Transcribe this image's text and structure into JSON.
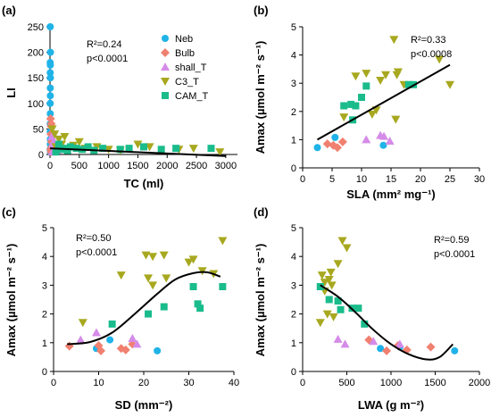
{
  "chart_data": [
    {
      "panel": "(a)",
      "type": "scatter",
      "xlabel": "TC (ml)",
      "ylabel": "LI",
      "xlim": [
        0,
        3200
      ],
      "ylim": [
        0,
        250
      ],
      "xticks": [
        0,
        500,
        1000,
        1500,
        2000,
        2500,
        3000
      ],
      "yticks": [
        0,
        50,
        100,
        150,
        200,
        250
      ],
      "annotation_stat": "R²=0.24",
      "annotation_p": "p<0.0001",
      "legend_position": "top-right",
      "series": [
        {
          "name": "Neb",
          "color": "#1fb3e8",
          "marker": "circle",
          "points": [
            [
              5,
              250
            ],
            [
              8,
              200
            ],
            [
              3,
              180
            ],
            [
              6,
              175
            ],
            [
              4,
              160
            ],
            [
              7,
              150
            ],
            [
              5,
              130
            ],
            [
              6,
              115
            ],
            [
              4,
              100
            ],
            [
              5,
              80
            ],
            [
              3,
              60
            ],
            [
              4,
              45
            ],
            [
              6,
              30
            ],
            [
              5,
              20
            ],
            [
              3,
              10
            ],
            [
              8,
              5
            ]
          ]
        },
        {
          "name": "Bulb",
          "color": "#f08070",
          "marker": "diamond",
          "points": [
            [
              10,
              70
            ],
            [
              20,
              55
            ],
            [
              15,
              40
            ],
            [
              25,
              25
            ],
            [
              30,
              15
            ],
            [
              12,
              10
            ],
            [
              22,
              60
            ],
            [
              18,
              5
            ]
          ]
        },
        {
          "name": "shall_T",
          "color": "#d58be8",
          "marker": "triangle-up",
          "points": [
            [
              30,
              35
            ],
            [
              50,
              20
            ],
            [
              70,
              10
            ],
            [
              40,
              5
            ],
            [
              90,
              15
            ],
            [
              120,
              8
            ],
            [
              60,
              25
            ]
          ]
        },
        {
          "name": "C3_T",
          "color": "#a8a820",
          "marker": "triangle-down",
          "points": [
            [
              40,
              50
            ],
            [
              80,
              40
            ],
            [
              150,
              30
            ],
            [
              200,
              20
            ],
            [
              100,
              15
            ],
            [
              300,
              10
            ],
            [
              400,
              18
            ],
            [
              600,
              12
            ],
            [
              800,
              15
            ],
            [
              1000,
              10
            ],
            [
              1200,
              8
            ],
            [
              1500,
              20
            ],
            [
              1700,
              15
            ],
            [
              2200,
              10
            ],
            [
              2450,
              12
            ],
            [
              2900,
              5
            ],
            [
              500,
              25
            ],
            [
              250,
              35
            ]
          ]
        },
        {
          "name": "CAM_T",
          "color": "#1abc8c",
          "marker": "square",
          "points": [
            [
              100,
              5
            ],
            [
              200,
              10
            ],
            [
              300,
              8
            ],
            [
              350,
              15
            ],
            [
              450,
              12
            ],
            [
              550,
              10
            ],
            [
              650,
              15
            ],
            [
              750,
              8
            ],
            [
              900,
              12
            ],
            [
              1200,
              10
            ],
            [
              1350,
              12
            ],
            [
              1600,
              15
            ],
            [
              1900,
              10
            ],
            [
              2150,
              12
            ],
            [
              2750,
              12
            ],
            [
              150,
              20
            ],
            [
              250,
              12
            ]
          ]
        }
      ],
      "fit": {
        "type": "line",
        "points": [
          [
            0,
            12
          ],
          [
            3000,
            -3
          ]
        ]
      }
    },
    {
      "panel": "(b)",
      "type": "scatter",
      "xlabel": "SLA (mm² mg⁻¹)",
      "ylabel": "Amax (µmol m⁻² s⁻¹)",
      "xlim": [
        0,
        30
      ],
      "ylim": [
        0,
        5
      ],
      "xticks": [
        0,
        5,
        10,
        15,
        20,
        25,
        30
      ],
      "yticks": [
        0,
        1,
        2,
        3,
        4,
        5
      ],
      "annotation_stat": "R²=0.33",
      "annotation_p": "p<0.0008",
      "series": [
        {
          "name": "Neb",
          "color": "#1fb3e8",
          "marker": "circle",
          "points": [
            [
              2.5,
              0.72
            ],
            [
              5.5,
              1.08
            ],
            [
              13.7,
              0.8
            ]
          ]
        },
        {
          "name": "Bulb",
          "color": "#f08070",
          "marker": "diamond",
          "points": [
            [
              4.2,
              0.85
            ],
            [
              5.2,
              0.8
            ],
            [
              5.9,
              0.72
            ],
            [
              6.8,
              0.92
            ]
          ]
        },
        {
          "name": "shall_T",
          "color": "#d58be8",
          "marker": "triangle-up",
          "points": [
            [
              10.8,
              1.0
            ],
            [
              13.2,
              1.15
            ],
            [
              13.8,
              1.12
            ],
            [
              14.8,
              0.95
            ]
          ]
        },
        {
          "name": "C3_T",
          "color": "#a8a820",
          "marker": "triangle-down",
          "points": [
            [
              7.0,
              1.8
            ],
            [
              9.0,
              3.25
            ],
            [
              10.8,
              3.35
            ],
            [
              11.8,
              1.9
            ],
            [
              13.2,
              3.1
            ],
            [
              14.1,
              3.3
            ],
            [
              15.5,
              4.55
            ],
            [
              16.2,
              3.4
            ],
            [
              15.8,
              1.72
            ],
            [
              17.2,
              2.95
            ],
            [
              23.2,
              3.85
            ],
            [
              25.0,
              2.95
            ],
            [
              16.0,
              3.3
            ],
            [
              12.5,
              2.05
            ]
          ]
        },
        {
          "name": "CAM_T",
          "color": "#1abc8c",
          "marker": "square",
          "points": [
            [
              8.5,
              1.7
            ],
            [
              7.0,
              2.2
            ],
            [
              8.2,
              2.25
            ],
            [
              9.0,
              2.2
            ],
            [
              10.0,
              2.5
            ],
            [
              10.8,
              2.9
            ],
            [
              18.0,
              2.95
            ],
            [
              18.8,
              2.95
            ]
          ]
        }
      ],
      "fit": {
        "type": "line",
        "points": [
          [
            2.5,
            1.0
          ],
          [
            25,
            3.65
          ]
        ]
      }
    },
    {
      "panel": "(c)",
      "type": "scatter",
      "xlabel": "SD (mm⁻²)",
      "ylabel": "Amax (µmol m⁻² s⁻¹)",
      "xlim": [
        0,
        40
      ],
      "ylim": [
        0,
        5
      ],
      "xticks": [
        0,
        10,
        20,
        30,
        40
      ],
      "yticks": [
        0,
        1,
        2,
        3,
        4,
        5
      ],
      "annotation_stat": "R²=0.50",
      "annotation_p": "p<0.0001",
      "series": [
        {
          "name": "Neb",
          "color": "#1fb3e8",
          "marker": "circle",
          "points": [
            [
              9.5,
              0.8
            ],
            [
              12.5,
              1.1
            ],
            [
              23.0,
              0.72
            ]
          ]
        },
        {
          "name": "Bulb",
          "color": "#f08070",
          "marker": "diamond",
          "points": [
            [
              3.5,
              0.88
            ],
            [
              10.5,
              0.72
            ],
            [
              15.0,
              0.8
            ],
            [
              16.0,
              0.75
            ],
            [
              17.5,
              0.95
            ],
            [
              10.0,
              0.9
            ]
          ]
        },
        {
          "name": "shall_T",
          "color": "#d58be8",
          "marker": "triangle-up",
          "points": [
            [
              6.0,
              1.1
            ],
            [
              9.5,
              1.35
            ],
            [
              17.5,
              1.15
            ],
            [
              18.5,
              0.95
            ]
          ]
        },
        {
          "name": "C3_T",
          "color": "#a8a820",
          "marker": "triangle-down",
          "points": [
            [
              6.5,
              1.7
            ],
            [
              15.0,
              3.35
            ],
            [
              20.5,
              4.05
            ],
            [
              21.0,
              3.25
            ],
            [
              22.0,
              3.0
            ],
            [
              22.0,
              4.0
            ],
            [
              24.5,
              4.05
            ],
            [
              30.0,
              3.8
            ],
            [
              31.0,
              3.9
            ],
            [
              33.0,
              3.5
            ],
            [
              35.5,
              3.4
            ],
            [
              37.5,
              4.55
            ],
            [
              25.0,
              3.25
            ]
          ]
        },
        {
          "name": "CAM_T",
          "color": "#1abc8c",
          "marker": "square",
          "points": [
            [
              13.0,
              1.65
            ],
            [
              21.0,
              2.0
            ],
            [
              24.5,
              2.25
            ],
            [
              31.0,
              2.95
            ],
            [
              32.0,
              2.35
            ],
            [
              32.5,
              2.2
            ],
            [
              37.5,
              2.95
            ]
          ]
        }
      ],
      "fit": {
        "type": "curve",
        "points": [
          [
            3,
            0.95
          ],
          [
            8,
            1.02
          ],
          [
            13,
            1.35
          ],
          [
            18,
            2.0
          ],
          [
            23,
            2.7
          ],
          [
            27,
            3.2
          ],
          [
            31,
            3.42
          ],
          [
            34,
            3.45
          ],
          [
            37,
            3.3
          ]
        ]
      }
    },
    {
      "panel": "(d)",
      "type": "scatter",
      "xlabel": "LWA (g m⁻²)",
      "ylabel": "Amax (µmol m⁻² s⁻¹)",
      "xlim": [
        0,
        2000
      ],
      "ylim": [
        0,
        5
      ],
      "xticks": [
        0,
        500,
        1000,
        1500,
        2000
      ],
      "yticks": [
        0,
        1,
        2,
        3,
        4,
        5
      ],
      "annotation_stat": "R²=0.59",
      "annotation_p": "p<0.0001",
      "series": [
        {
          "name": "Neb",
          "color": "#1fb3e8",
          "marker": "circle",
          "points": [
            [
              880,
              0.8
            ],
            [
              1100,
              0.85
            ],
            [
              1720,
              0.72
            ]
          ]
        },
        {
          "name": "Bulb",
          "color": "#f08070",
          "marker": "diamond",
          "points": [
            [
              750,
              1.1
            ],
            [
              950,
              0.72
            ],
            [
              1080,
              0.9
            ],
            [
              1180,
              0.75
            ],
            [
              1450,
              0.85
            ]
          ]
        },
        {
          "name": "shall_T",
          "color": "#d58be8",
          "marker": "triangle-up",
          "points": [
            [
              400,
              1.12
            ],
            [
              480,
              0.95
            ],
            [
              800,
              1.05
            ],
            [
              1100,
              0.95
            ]
          ]
        },
        {
          "name": "C3_T",
          "color": "#a8a820",
          "marker": "triangle-down",
          "points": [
            [
              200,
              1.7
            ],
            [
              220,
              3.35
            ],
            [
              250,
              3.1
            ],
            [
              280,
              2.0
            ],
            [
              300,
              3.2
            ],
            [
              320,
              3.45
            ],
            [
              400,
              3.75
            ],
            [
              450,
              4.55
            ],
            [
              500,
              4.3
            ],
            [
              250,
              2.8
            ],
            [
              350,
              1.9
            ],
            [
              330,
              3.0
            ]
          ]
        },
        {
          "name": "CAM_T",
          "color": "#1abc8c",
          "marker": "square",
          "points": [
            [
              200,
              2.95
            ],
            [
              400,
              2.45
            ],
            [
              430,
              2.15
            ],
            [
              560,
              2.2
            ],
            [
              630,
              2.2
            ],
            [
              700,
              1.65
            ],
            [
              300,
              2.5
            ]
          ]
        }
      ],
      "fit": {
        "type": "curve",
        "points": [
          [
            200,
            3.0
          ],
          [
            400,
            2.6
          ],
          [
            600,
            2.05
          ],
          [
            800,
            1.45
          ],
          [
            1000,
            0.95
          ],
          [
            1200,
            0.6
          ],
          [
            1400,
            0.42
          ],
          [
            1550,
            0.5
          ],
          [
            1700,
            0.95
          ]
        ]
      }
    }
  ]
}
